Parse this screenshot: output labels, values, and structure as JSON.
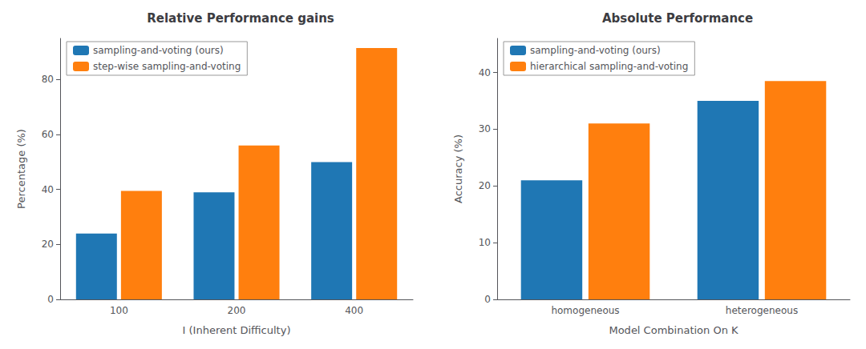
{
  "chart_data": [
    {
      "type": "bar",
      "title": "Relative Performance gains",
      "xlabel": "I (Inherent Difficulty)",
      "ylabel": "Percentage (%)",
      "categories": [
        "100",
        "200",
        "400"
      ],
      "series": [
        {
          "name": "sampling-and-voting (ours)",
          "color": "#1f77b4",
          "values": [
            24.0,
            39.0,
            50.0
          ]
        },
        {
          "name": "step-wise sampling-and-voting",
          "color": "#ff7f0e",
          "values": [
            39.5,
            56.0,
            91.5
          ]
        }
      ],
      "ylim": [
        0,
        95
      ],
      "yticks": [
        0,
        20,
        40,
        60,
        80
      ],
      "grid": false,
      "legend": "upper left"
    },
    {
      "type": "bar",
      "title": "Absolute Performance",
      "xlabel": "Model Combination On K",
      "ylabel": "Accuracy (%)",
      "categories": [
        "homogeneous",
        "heterogeneous"
      ],
      "series": [
        {
          "name": "sampling-and-voting (ours)",
          "color": "#1f77b4",
          "values": [
            21.0,
            35.0
          ]
        },
        {
          "name": "hierarchical sampling-and-voting",
          "color": "#ff7f0e",
          "values": [
            31.0,
            38.5
          ]
        }
      ],
      "ylim": [
        0,
        46
      ],
      "yticks": [
        0,
        10,
        20,
        30,
        40
      ],
      "grid": false,
      "legend": "upper left"
    }
  ]
}
